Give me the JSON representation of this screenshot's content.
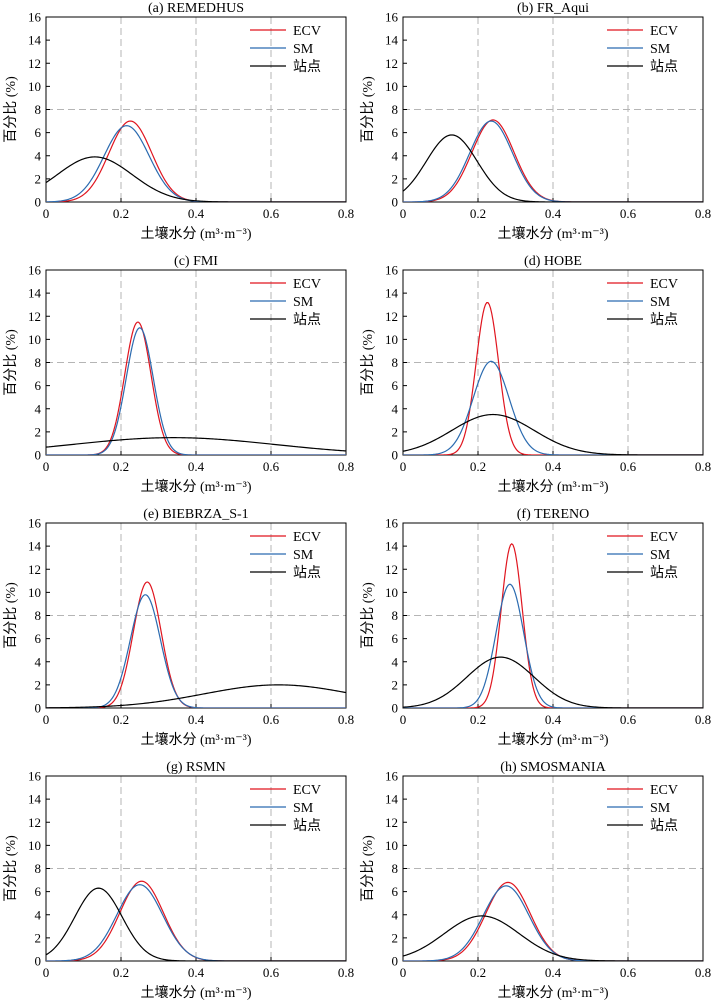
{
  "figure": {
    "xlabel": "土壤水分 (m³·m⁻³)",
    "ylabel": "百分比 (%)",
    "legend": [
      "ECV",
      "SM",
      "站点"
    ],
    "colors": {
      "ECV": "#e0151f",
      "SM": "#2b6bb0",
      "站点": "#000000"
    }
  },
  "chart_data": [
    {
      "type": "line",
      "title": "(a) REMEDHUS",
      "xlabel": "土壤水分 (m³·m⁻³)",
      "ylabel": "百分比 (%)",
      "xlim": [
        0,
        0.8
      ],
      "ylim": [
        0,
        16
      ],
      "xticks": [
        "0",
        "0.2",
        "0.4",
        "0.6",
        "0.8"
      ],
      "yticks": [
        "0",
        "2",
        "4",
        "6",
        "8",
        "10",
        "12",
        "14",
        "16"
      ],
      "legend": "top-right",
      "series": [
        {
          "name": "ECV",
          "mean": 0.225,
          "sd": 0.057,
          "peak": 7.0
        },
        {
          "name": "SM",
          "mean": 0.215,
          "sd": 0.06,
          "peak": 6.6
        },
        {
          "name": "站点",
          "mean": 0.13,
          "sd": 0.1,
          "peak": 3.9
        }
      ]
    },
    {
      "type": "line",
      "title": "(b) FR_Aqui",
      "xlabel": "土壤水分 (m³·m⁻³)",
      "ylabel": "百分比 (%)",
      "xlim": [
        0,
        0.8
      ],
      "ylim": [
        0,
        16
      ],
      "xticks": [
        "0",
        "0.2",
        "0.4",
        "0.6",
        "0.8"
      ],
      "yticks": [
        "0",
        "2",
        "4",
        "6",
        "8",
        "10",
        "12",
        "14",
        "16"
      ],
      "legend": "top-right",
      "series": [
        {
          "name": "ECV",
          "mean": 0.24,
          "sd": 0.056,
          "peak": 7.1
        },
        {
          "name": "SM",
          "mean": 0.235,
          "sd": 0.057,
          "peak": 7.0
        },
        {
          "name": "站点",
          "mean": 0.13,
          "sd": 0.068,
          "peak": 5.8
        }
      ]
    },
    {
      "type": "line",
      "title": "(c) FMI",
      "xlabel": "土壤水分 (m³·m⁻³)",
      "ylabel": "百分比 (%)",
      "xlim": [
        0,
        0.8
      ],
      "ylim": [
        0,
        16
      ],
      "xticks": [
        "0",
        "0.2",
        "0.4",
        "0.6",
        "0.8"
      ],
      "yticks": [
        "0",
        "2",
        "4",
        "6",
        "8",
        "10",
        "12",
        "14",
        "16"
      ],
      "legend": "top-right",
      "series": [
        {
          "name": "ECV",
          "mean": 0.245,
          "sd": 0.035,
          "peak": 11.5
        },
        {
          "name": "SM",
          "mean": 0.25,
          "sd": 0.036,
          "peak": 11.0
        },
        {
          "name": "站点",
          "mean": 0.34,
          "sd": 0.27,
          "peak": 1.5
        }
      ]
    },
    {
      "type": "line",
      "title": "(d) HOBE",
      "xlabel": "土壤水分 (m³·m⁻³)",
      "ylabel": "百分比 (%)",
      "xlim": [
        0,
        0.8
      ],
      "ylim": [
        0,
        16
      ],
      "xticks": [
        "0",
        "0.2",
        "0.4",
        "0.6",
        "0.8"
      ],
      "yticks": [
        "0",
        "2",
        "4",
        "6",
        "8",
        "10",
        "12",
        "14",
        "16"
      ],
      "legend": "top-right",
      "series": [
        {
          "name": "ECV",
          "mean": 0.225,
          "sd": 0.03,
          "peak": 13.2
        },
        {
          "name": "SM",
          "mean": 0.235,
          "sd": 0.048,
          "peak": 8.1
        },
        {
          "name": "站点",
          "mean": 0.24,
          "sd": 0.11,
          "peak": 3.5
        }
      ]
    },
    {
      "type": "line",
      "title": "(e) BIEBRZA_S-1",
      "xlabel": "土壤水分 (m³·m⁻³)",
      "ylabel": "百分比 (%)",
      "xlim": [
        0,
        0.8
      ],
      "ylim": [
        0,
        16
      ],
      "xticks": [
        "0",
        "0.2",
        "0.4",
        "0.6",
        "0.8"
      ],
      "yticks": [
        "0",
        "2",
        "4",
        "6",
        "8",
        "10",
        "12",
        "14",
        "16"
      ],
      "legend": "top-right",
      "series": [
        {
          "name": "ECV",
          "mean": 0.27,
          "sd": 0.037,
          "peak": 10.9
        },
        {
          "name": "SM",
          "mean": 0.265,
          "sd": 0.04,
          "peak": 9.8
        },
        {
          "name": "站点",
          "mean": 0.62,
          "sd": 0.2,
          "peak": 2.0
        }
      ]
    },
    {
      "type": "line",
      "title": "(f) TERENO",
      "xlabel": "土壤水分 (m³·m⁻³)",
      "ylabel": "百分比 (%)",
      "xlim": [
        0,
        0.8
      ],
      "ylim": [
        0,
        16
      ],
      "xticks": [
        "0",
        "0.2",
        "0.4",
        "0.6",
        "0.8"
      ],
      "yticks": [
        "0",
        "2",
        "4",
        "6",
        "8",
        "10",
        "12",
        "14",
        "16"
      ],
      "legend": "top-right",
      "series": [
        {
          "name": "ECV",
          "mean": 0.29,
          "sd": 0.028,
          "peak": 14.2
        },
        {
          "name": "SM",
          "mean": 0.285,
          "sd": 0.037,
          "peak": 10.7
        },
        {
          "name": "站点",
          "mean": 0.26,
          "sd": 0.09,
          "peak": 4.4
        }
      ]
    },
    {
      "type": "line",
      "title": "(g) RSMN",
      "xlabel": "土壤水分 (m³·m⁻³)",
      "ylabel": "百分比 (%)",
      "xlim": [
        0,
        0.8
      ],
      "ylim": [
        0,
        16
      ],
      "xticks": [
        "0",
        "0.2",
        "0.4",
        "0.6",
        "0.8"
      ],
      "yticks": [
        "0",
        "2",
        "4",
        "6",
        "8",
        "10",
        "12",
        "14",
        "16"
      ],
      "legend": "top-right",
      "series": [
        {
          "name": "ECV",
          "mean": 0.255,
          "sd": 0.058,
          "peak": 6.9
        },
        {
          "name": "SM",
          "mean": 0.25,
          "sd": 0.061,
          "peak": 6.6
        },
        {
          "name": "站点",
          "mean": 0.14,
          "sd": 0.063,
          "peak": 6.3
        }
      ]
    },
    {
      "type": "line",
      "title": "(h) SMOSMANIA",
      "xlabel": "土壤水分 (m³·m⁻³)",
      "ylabel": "百分比 (%)",
      "xlim": [
        0,
        0.8
      ],
      "ylim": [
        0,
        16
      ],
      "xticks": [
        "0",
        "0.2",
        "0.4",
        "0.6",
        "0.8"
      ],
      "yticks": [
        "0",
        "2",
        "4",
        "6",
        "8",
        "10",
        "12",
        "14",
        "16"
      ],
      "legend": "top-right",
      "series": [
        {
          "name": "ECV",
          "mean": 0.28,
          "sd": 0.059,
          "peak": 6.8
        },
        {
          "name": "SM",
          "mean": 0.275,
          "sd": 0.061,
          "peak": 6.5
        },
        {
          "name": "站点",
          "mean": 0.21,
          "sd": 0.1,
          "peak": 3.9
        }
      ]
    }
  ]
}
